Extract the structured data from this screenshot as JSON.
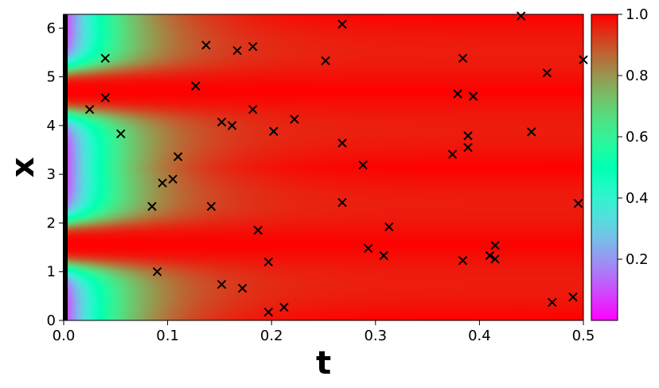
{
  "chart_data": {
    "type": "heatmap",
    "title": "",
    "xlabel": "t",
    "ylabel": "x",
    "xlim": [
      0,
      0.5
    ],
    "ylim": [
      0,
      6.283
    ],
    "colormap": "rainbow",
    "clim": [
      0.0,
      1.0
    ],
    "x_ticks": [
      {
        "value": 0.0,
        "label": "0.0"
      },
      {
        "value": 0.1,
        "label": "0.1"
      },
      {
        "value": 0.2,
        "label": "0.2"
      },
      {
        "value": 0.3,
        "label": "0.3"
      },
      {
        "value": 0.4,
        "label": "0.4"
      },
      {
        "value": 0.5,
        "label": "0.5"
      }
    ],
    "y_ticks": [
      {
        "value": 0,
        "label": "0"
      },
      {
        "value": 1,
        "label": "1"
      },
      {
        "value": 2,
        "label": "2"
      },
      {
        "value": 3,
        "label": "3"
      },
      {
        "value": 4,
        "label": "4"
      },
      {
        "value": 5,
        "label": "5"
      },
      {
        "value": 6,
        "label": "6"
      }
    ],
    "colorbar_ticks": [
      {
        "value": 0.2,
        "label": "0.2"
      },
      {
        "value": 0.4,
        "label": "0.4"
      },
      {
        "value": 0.6,
        "label": "0.6"
      },
      {
        "value": 0.8,
        "label": "0.8"
      },
      {
        "value": 1.0,
        "label": "1.0"
      }
    ],
    "marker": "x",
    "marker_color": "#000000",
    "boundary_line_at_t": 0.0,
    "boundary_line_color": "#000000",
    "grid": false,
    "points": [
      {
        "t": 0.025,
        "x": 4.33
      },
      {
        "t": 0.04,
        "x": 5.38
      },
      {
        "t": 0.04,
        "x": 4.57
      },
      {
        "t": 0.055,
        "x": 3.83
      },
      {
        "t": 0.085,
        "x": 2.34
      },
      {
        "t": 0.09,
        "x": 1.0
      },
      {
        "t": 0.095,
        "x": 2.82
      },
      {
        "t": 0.105,
        "x": 2.9
      },
      {
        "t": 0.11,
        "x": 3.36
      },
      {
        "t": 0.127,
        "x": 4.81
      },
      {
        "t": 0.137,
        "x": 5.65
      },
      {
        "t": 0.142,
        "x": 2.34
      },
      {
        "t": 0.152,
        "x": 0.74
      },
      {
        "t": 0.152,
        "x": 4.07
      },
      {
        "t": 0.162,
        "x": 4.0
      },
      {
        "t": 0.167,
        "x": 5.54
      },
      {
        "t": 0.172,
        "x": 0.66
      },
      {
        "t": 0.182,
        "x": 4.33
      },
      {
        "t": 0.182,
        "x": 5.62
      },
      {
        "t": 0.187,
        "x": 1.85
      },
      {
        "t": 0.197,
        "x": 1.2
      },
      {
        "t": 0.197,
        "x": 0.17
      },
      {
        "t": 0.202,
        "x": 3.88
      },
      {
        "t": 0.212,
        "x": 0.27
      },
      {
        "t": 0.222,
        "x": 4.13
      },
      {
        "t": 0.252,
        "x": 5.33
      },
      {
        "t": 0.268,
        "x": 6.08
      },
      {
        "t": 0.268,
        "x": 3.64
      },
      {
        "t": 0.268,
        "x": 2.42
      },
      {
        "t": 0.288,
        "x": 3.19
      },
      {
        "t": 0.293,
        "x": 1.48
      },
      {
        "t": 0.308,
        "x": 1.33
      },
      {
        "t": 0.313,
        "x": 1.92
      },
      {
        "t": 0.374,
        "x": 3.41
      },
      {
        "t": 0.379,
        "x": 4.65
      },
      {
        "t": 0.384,
        "x": 5.38
      },
      {
        "t": 0.384,
        "x": 1.23
      },
      {
        "t": 0.389,
        "x": 3.79
      },
      {
        "t": 0.389,
        "x": 3.55
      },
      {
        "t": 0.394,
        "x": 4.6
      },
      {
        "t": 0.41,
        "x": 1.33
      },
      {
        "t": 0.415,
        "x": 1.54
      },
      {
        "t": 0.415,
        "x": 1.26
      },
      {
        "t": 0.44,
        "x": 6.25
      },
      {
        "t": 0.45,
        "x": 3.87
      },
      {
        "t": 0.465,
        "x": 5.08
      },
      {
        "t": 0.47,
        "x": 0.37
      },
      {
        "t": 0.49,
        "x": 0.48
      },
      {
        "t": 0.495,
        "x": 2.4
      },
      {
        "t": 0.5,
        "x": 5.35
      }
    ]
  }
}
